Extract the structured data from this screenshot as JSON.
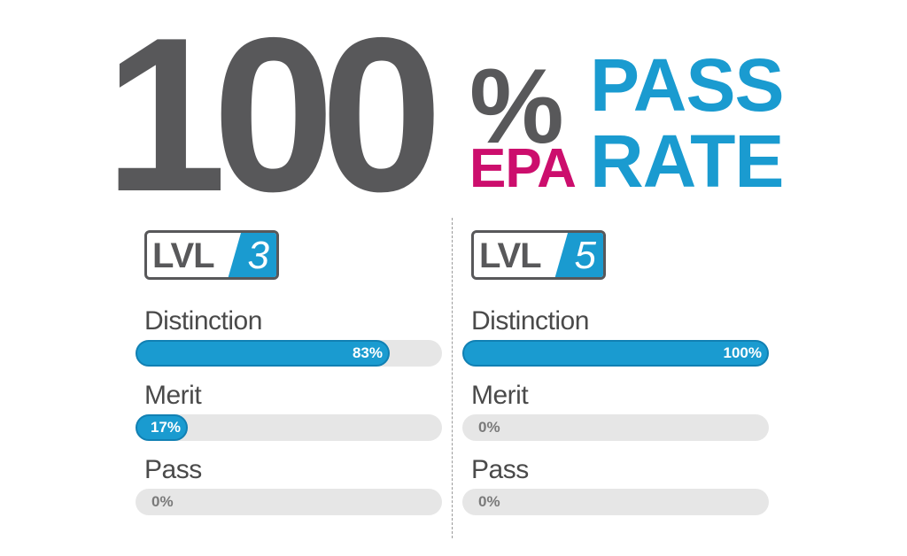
{
  "headline": {
    "number": "100",
    "percent": "%",
    "epa": "EPA",
    "pass": "PASS",
    "rate": "RATE"
  },
  "levels": [
    {
      "badge_label": "LVL",
      "badge_number": "3",
      "metrics": [
        {
          "label": "Distinction",
          "value": 83,
          "display": "83%"
        },
        {
          "label": "Merit",
          "value": 17,
          "display": "17%"
        },
        {
          "label": "Pass",
          "value": 0,
          "display": "0%"
        }
      ]
    },
    {
      "badge_label": "LVL",
      "badge_number": "5",
      "metrics": [
        {
          "label": "Distinction",
          "value": 100,
          "display": "100%"
        },
        {
          "label": "Merit",
          "value": 0,
          "display": "0%"
        },
        {
          "label": "Pass",
          "value": 0,
          "display": "0%"
        }
      ]
    }
  ],
  "colors": {
    "grey": "#58585a",
    "blue": "#1a9bd0",
    "magenta": "#cc0e6d",
    "track": "#e6e6e6"
  }
}
